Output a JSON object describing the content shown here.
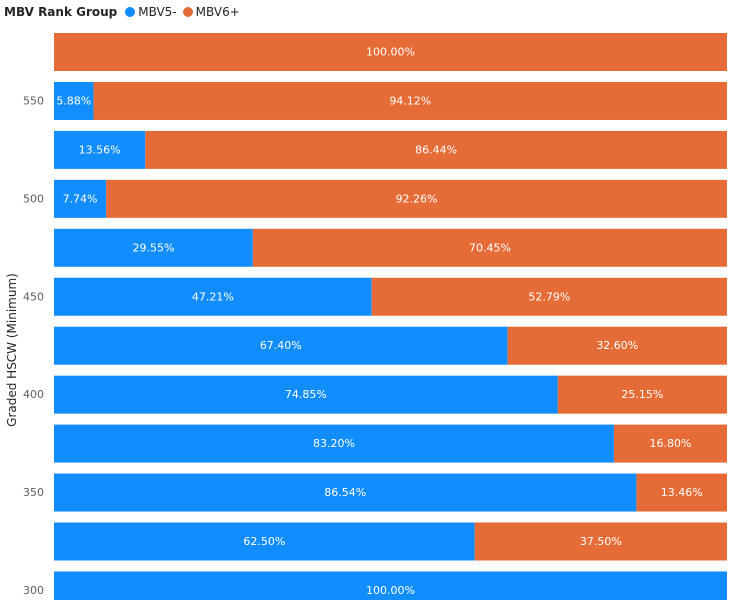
{
  "chart_data": {
    "type": "bar",
    "orientation": "horizontal",
    "stacking": "percent",
    "legend": {
      "title": "MBV Rank Group",
      "position": "top-left",
      "items": [
        {
          "name": "MBV5-",
          "color": "#118DFF"
        },
        {
          "name": "MBV6+",
          "color": "#E66C37"
        }
      ]
    },
    "ylabel": "Graded HSCW (Minimum)",
    "ytick_labels": [
      "550",
      "500",
      "450",
      "400",
      "350",
      "300"
    ],
    "categories": [
      "",
      "550",
      "",
      "500",
      "",
      "450",
      "",
      "400",
      "",
      "350",
      "",
      "300"
    ],
    "series": [
      {
        "name": "MBV5-",
        "color": "#118DFF",
        "values": [
          0,
          5.88,
          13.56,
          7.74,
          29.55,
          47.21,
          67.4,
          74.85,
          83.2,
          86.54,
          62.5,
          100.0
        ],
        "labels": [
          "",
          "5.88%",
          "13.56%",
          "7.74%",
          "29.55%",
          "47.21%",
          "67.40%",
          "74.85%",
          "83.20%",
          "86.54%",
          "62.50%",
          "100.00%"
        ]
      },
      {
        "name": "MBV6+",
        "color": "#E66C37",
        "values": [
          100.0,
          94.12,
          86.44,
          92.26,
          70.45,
          52.79,
          32.6,
          25.15,
          16.8,
          13.46,
          37.5,
          0
        ],
        "labels": [
          "100.00%",
          "94.12%",
          "86.44%",
          "92.26%",
          "70.45%",
          "52.79%",
          "32.60%",
          "25.15%",
          "16.80%",
          "13.46%",
          "37.50%",
          ""
        ]
      }
    ],
    "xlim": [
      0,
      100
    ],
    "grid": false
  }
}
